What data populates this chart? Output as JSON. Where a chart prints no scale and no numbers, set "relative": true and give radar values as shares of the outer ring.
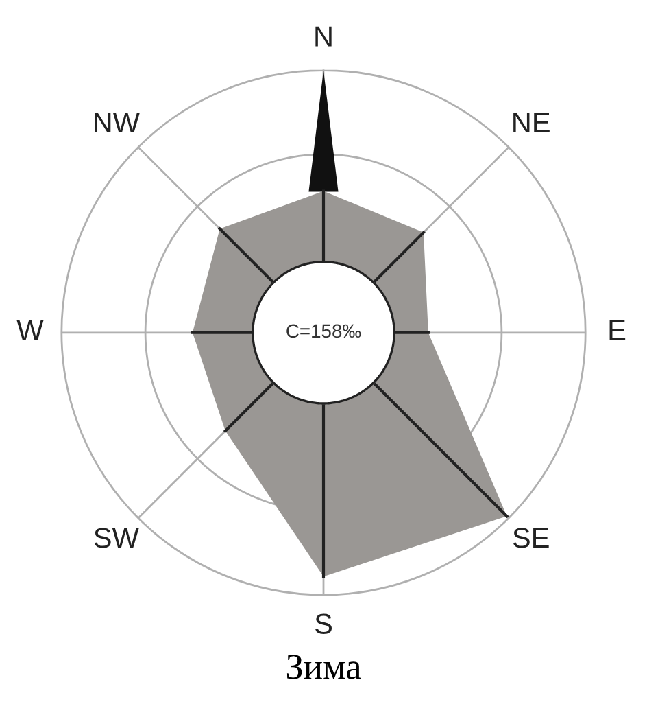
{
  "chart_data": {
    "type": "radar",
    "relative": true,
    "title": "Зима",
    "categories": [
      "N",
      "NE",
      "E",
      "SE",
      "S",
      "SW",
      "W",
      "NW"
    ],
    "series": [
      {
        "color": "#9a9794",
        "values": [
          0.54,
          0.54,
          0.4,
          0.99,
          0.93,
          0.53,
          0.5,
          0.56
        ]
      }
    ],
    "annotations": [
      "C=158‰"
    ],
    "grid": true
  }
}
